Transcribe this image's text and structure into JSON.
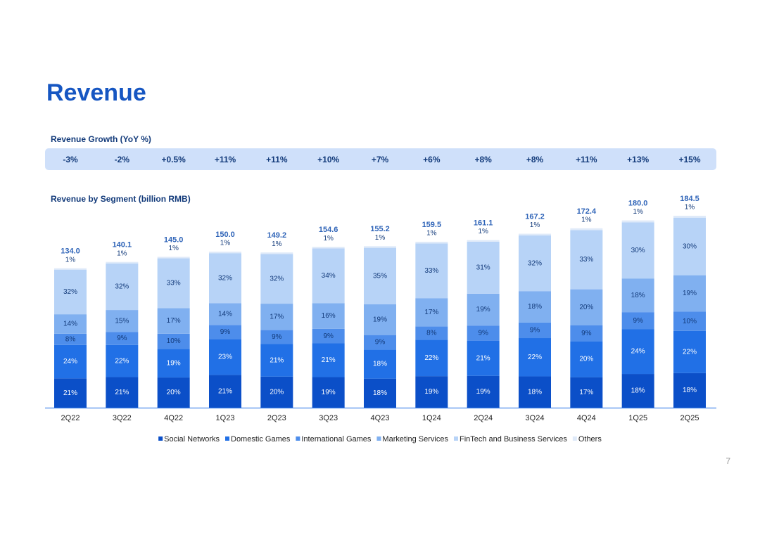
{
  "title": "Revenue",
  "page_number": "7",
  "growth": {
    "title": "Revenue Growth (YoY %)",
    "values": [
      -3,
      -2,
      0.5,
      11,
      11,
      10,
      7,
      6,
      8,
      8,
      11,
      13,
      15
    ],
    "value_labels": [
      "-3%",
      "-2%",
      "+0.5%",
      "+11%",
      "+11%",
      "+10%",
      "+7%",
      "+6%",
      "+8%",
      "+8%",
      "+11%",
      "+13%",
      "+15%"
    ]
  },
  "chart_data": {
    "type": "stacked_bar",
    "title": "Revenue by Segment (billion RMB)",
    "categories": [
      "2Q22",
      "3Q22",
      "4Q22",
      "1Q23",
      "2Q23",
      "3Q23",
      "4Q23",
      "1Q24",
      "2Q24",
      "3Q24",
      "4Q24",
      "1Q25",
      "2Q25"
    ],
    "ylim": [
      0,
      200
    ],
    "totals": {
      "values": [
        134.0,
        140.1,
        145.0,
        150.0,
        149.2,
        154.6,
        155.2,
        159.5,
        161.1,
        167.2,
        172.4,
        180.0,
        184.5
      ],
      "value_labels": [
        "134.0",
        "140.1",
        "145.0",
        "150.0",
        "149.2",
        "154.6",
        "155.2",
        "159.5",
        "161.1",
        "167.2",
        "172.4",
        "180.0",
        "184.5"
      ]
    },
    "series": [
      {
        "name": "Social Networks",
        "color": "#0b4fc8",
        "values": [
          21,
          21,
          20,
          21,
          20,
          19,
          18,
          19,
          19,
          18,
          17,
          18,
          18
        ],
        "value_labels": [
          "21%",
          "21%",
          "20%",
          "21%",
          "20%",
          "19%",
          "18%",
          "19%",
          "19%",
          "18%",
          "17%",
          "18%",
          "18%"
        ]
      },
      {
        "name": "Domestic Games",
        "color": "#2170e6",
        "values": [
          24,
          22,
          19,
          23,
          21,
          21,
          18,
          22,
          21,
          22,
          20,
          24,
          22
        ],
        "value_labels": [
          "24%",
          "22%",
          "19%",
          "23%",
          "21%",
          "21%",
          "18%",
          "22%",
          "21%",
          "22%",
          "20%",
          "24%",
          "22%"
        ]
      },
      {
        "name": "International Games",
        "color": "#4d8deb",
        "values": [
          8,
          9,
          10,
          9,
          9,
          9,
          9,
          8,
          9,
          9,
          9,
          9,
          10
        ],
        "value_labels": [
          "8%",
          "9%",
          "10%",
          "9%",
          "9%",
          "9%",
          "9%",
          "8%",
          "9%",
          "9%",
          "9%",
          "9%",
          "10%"
        ]
      },
      {
        "name": "Marketing Services",
        "color": "#80b0f0",
        "values": [
          14,
          15,
          17,
          14,
          17,
          16,
          19,
          17,
          19,
          18,
          20,
          18,
          19
        ],
        "value_labels": [
          "14%",
          "15%",
          "17%",
          "14%",
          "17%",
          "16%",
          "19%",
          "17%",
          "19%",
          "18%",
          "20%",
          "18%",
          "19%"
        ]
      },
      {
        "name": "FinTech and Business Services",
        "color": "#b7d3f7",
        "values": [
          32,
          32,
          33,
          32,
          32,
          34,
          35,
          33,
          31,
          32,
          33,
          30,
          30
        ],
        "value_labels": [
          "32%",
          "32%",
          "33%",
          "32%",
          "32%",
          "34%",
          "35%",
          "33%",
          "31%",
          "32%",
          "33%",
          "30%",
          "30%"
        ]
      },
      {
        "name": "Others",
        "color": "#dfeaf9",
        "values": [
          1,
          1,
          1,
          1,
          1,
          1,
          1,
          1,
          1,
          1,
          1,
          1,
          1
        ],
        "value_labels": [
          "1%",
          "1%",
          "1%",
          "1%",
          "1%",
          "1%",
          "1%",
          "1%",
          "1%",
          "1%",
          "1%",
          "1%",
          "1%"
        ]
      }
    ]
  }
}
